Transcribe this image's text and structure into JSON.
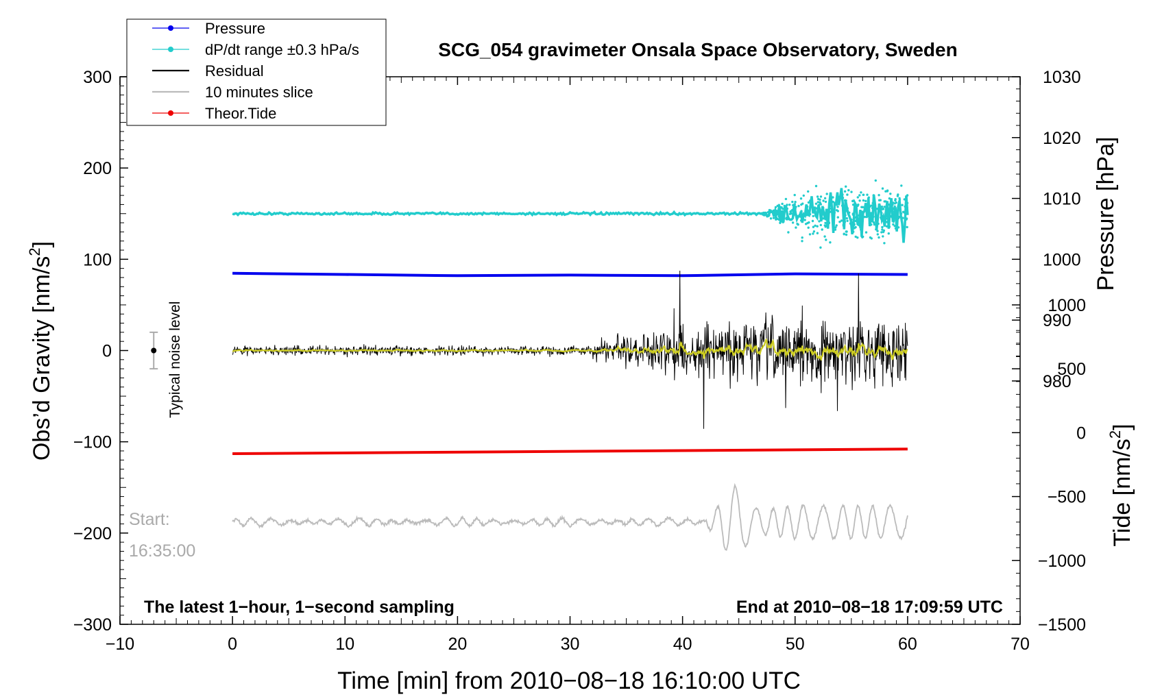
{
  "chart_data": {
    "type": "line",
    "title": "SCG_054 gravimeter Onsala Space Observatory, Sweden",
    "xlabel": "Time [min] from 2010−08−18 16:10:00 UTC",
    "ylabel_left": "Obs’d Gravity [nm/s",
    "ylabel_sup": "2",
    "ylabel_close": "]",
    "ylabel_pressure": "Pressure [hPa]",
    "ylabel_tide": "Tide [nm/s",
    "xlim": [
      -10,
      70
    ],
    "ylim_gravity": [
      -300,
      300
    ],
    "ylim_pressure_axis": [
      980,
      1030
    ],
    "ylim_tide_axis": [
      -1500,
      1000
    ],
    "x_ticks": [
      "−10",
      "0",
      "10",
      "20",
      "30",
      "40",
      "50",
      "60",
      "70"
    ],
    "y_ticks_left": [
      "300",
      "200",
      "100",
      "0",
      "−100",
      "−200",
      "−300"
    ],
    "y_ticks_pressure": [
      "1030",
      "1020",
      "1010",
      "1000",
      "990",
      "980"
    ],
    "y_ticks_tide": [
      "1000",
      "500",
      "0",
      "−500",
      "−1000",
      "−1500"
    ],
    "legend": [
      {
        "label": "Pressure",
        "color": "#0000ee",
        "marker": true
      },
      {
        "label": "dP/dt range ±0.3 hPa/s",
        "color": "#22cccc",
        "marker": true
      },
      {
        "label": "Residual",
        "color": "#000000",
        "marker": false
      },
      {
        "label": "10 minutes slice",
        "color": "#bbbbbb",
        "marker": false
      },
      {
        "label": "Theor.Tide",
        "color": "#ee0000",
        "marker": true
      }
    ],
    "series": [
      {
        "name": "Pressure",
        "units": "hPa",
        "x": [
          0,
          10,
          20,
          30,
          40,
          50,
          60
        ],
        "values": [
          997.7,
          997.5,
          997.3,
          997.4,
          997.3,
          997.6,
          997.5
        ]
      },
      {
        "name": "dP/dt range",
        "units": "nm/s2 display offset",
        "baseline": 150,
        "x_noise_start": 47,
        "spread_max": 65
      },
      {
        "name": "Residual",
        "baseline": 0,
        "quiet_amplitude": 5,
        "active_start": 32,
        "peak_amplitude": 90
      },
      {
        "name": "Theor.Tide",
        "units": "nm/s2",
        "x": [
          0,
          60
        ],
        "values": [
          -113,
          -108
        ]
      },
      {
        "name": "10 minutes slice",
        "baseline": -188,
        "active_start": 42,
        "peak_amplitude": 45,
        "start_label": "16:35:00"
      }
    ],
    "noise_marker": {
      "label": "Typical noise level",
      "x": -7,
      "y": 0,
      "error": 20
    },
    "annotations": {
      "bottom_left": "The latest 1−hour, 1−second sampling",
      "bottom_right": "End at 2010−08−18 17:09:59 UTC",
      "start_label": "Start:",
      "start_time": "16:35:00"
    },
    "colors": {
      "pressure": "#0000ee",
      "dpdt": "#22cccc",
      "residual": "#000000",
      "residual_smooth": "#cccc22",
      "tide": "#ee0000",
      "slice": "#bbbbbb"
    }
  }
}
